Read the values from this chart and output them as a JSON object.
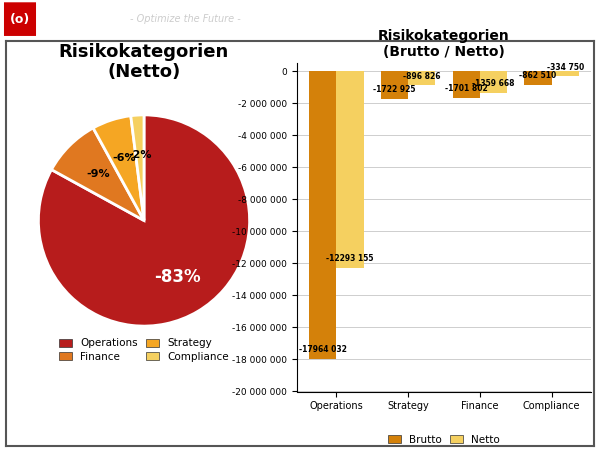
{
  "title_pie": "Risikokategorien\n(Netto)",
  "title_bar": "Risikokategorien\n(Brutto / Netto)",
  "header_bg": "#2d2d2d",
  "pie_values": [
    83,
    9,
    6,
    2
  ],
  "pie_label_texts": [
    "-83%",
    "-9%",
    "-6%",
    "-2%"
  ],
  "pie_colors": [
    "#b71c1c",
    "#e07820",
    "#f5a623",
    "#f5d060"
  ],
  "bar_categories": [
    "Operations",
    "Strategy",
    "Finance",
    "Compliance"
  ],
  "brutto_values": [
    -17964032,
    -1722925,
    -1701802,
    -862510
  ],
  "netto_values": [
    -12293155,
    -896826,
    -1359668,
    -334750
  ],
  "brutto_color": "#d4810a",
  "netto_color": "#f5d060",
  "bar_label_brutto": [
    "-17964 032",
    "-1722 925",
    "-1701 802",
    "-862 510"
  ],
  "bar_label_netto": [
    "-12293 155",
    "-896 826",
    "-1359 668",
    "-334 750"
  ],
  "legend_pie_names": [
    "Operations",
    "Finance",
    "Strategy",
    "Compliance"
  ],
  "legend_pie_colors": [
    "#b71c1c",
    "#e07820",
    "#f5a623",
    "#f5d060"
  ],
  "ylim_bar": [
    -20000000,
    500000
  ],
  "bg_color": "#ffffff",
  "border_color": "#555555",
  "tick_step": 2000000
}
